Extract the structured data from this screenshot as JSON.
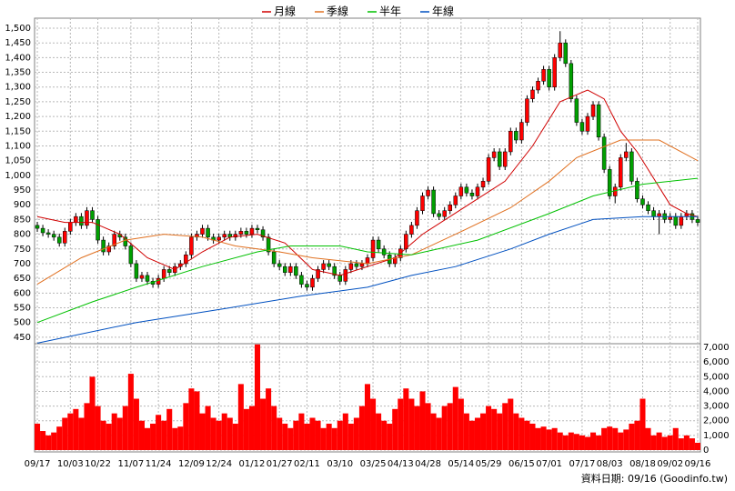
{
  "chart_data": {
    "type": "candlestick",
    "legend_position": "top",
    "grid": true,
    "footnote": "資料日期: 09/16 (Goodinfo.tw)",
    "up_color": "#ff0000",
    "down_color": "#00a000",
    "categories": [
      "09/17",
      null,
      null,
      null,
      null,
      null,
      "10/03",
      null,
      null,
      null,
      null,
      "10/22",
      null,
      null,
      null,
      null,
      null,
      "11/07",
      null,
      null,
      null,
      null,
      "11/24",
      null,
      null,
      null,
      null,
      null,
      "12/09",
      null,
      null,
      null,
      null,
      "12/24",
      null,
      null,
      null,
      null,
      null,
      "01/12",
      null,
      null,
      null,
      null,
      "01/27",
      null,
      null,
      null,
      null,
      "02/11",
      null,
      null,
      null,
      null,
      null,
      "03/10",
      null,
      null,
      null,
      null,
      null,
      "03/25",
      null,
      null,
      null,
      null,
      "04/13",
      null,
      null,
      null,
      null,
      "04/28",
      null,
      null,
      null,
      null,
      null,
      "05/14",
      null,
      null,
      null,
      null,
      "05/29",
      null,
      null,
      null,
      null,
      null,
      "06/15",
      null,
      null,
      null,
      null,
      "07/01",
      null,
      null,
      null,
      null,
      null,
      "07/17",
      null,
      null,
      null,
      null,
      "08/03",
      null,
      null,
      null,
      null,
      null,
      "08/18",
      null,
      null,
      null,
      null,
      "09/02",
      null,
      null,
      null,
      null,
      "09/16"
    ],
    "open": [
      830,
      820,
      805,
      800,
      790,
      770,
      810,
      840,
      860,
      830,
      880,
      850,
      780,
      740,
      760,
      800,
      790,
      760,
      700,
      650,
      660,
      640,
      630,
      650,
      680,
      670,
      690,
      700,
      730,
      790,
      800,
      820,
      790,
      780,
      790,
      800,
      790,
      800,
      810,
      800,
      820,
      815,
      790,
      740,
      700,
      690,
      670,
      690,
      660,
      630,
      620,
      650,
      680,
      700,
      690,
      660,
      640,
      680,
      700,
      690,
      700,
      720,
      780,
      750,
      730,
      700,
      720,
      750,
      800,
      830,
      880,
      930,
      950,
      870,
      860,
      880,
      900,
      930,
      960,
      940,
      930,
      960,
      980,
      1060,
      1080,
      1030,
      1080,
      1150,
      1120,
      1180,
      1260,
      1290,
      1320,
      1360,
      1300,
      1400,
      1450,
      1380,
      1260,
      1180,
      1150,
      1200,
      1240,
      1130,
      1020,
      930,
      960,
      1060,
      1080,
      980,
      920,
      900,
      880,
      860,
      870,
      850,
      860,
      830,
      860,
      870,
      850
    ],
    "high": [
      842,
      832,
      817,
      812,
      802,
      822,
      852,
      872,
      872,
      892,
      892,
      862,
      792,
      772,
      812,
      812,
      802,
      772,
      712,
      672,
      672,
      652,
      662,
      692,
      692,
      702,
      712,
      742,
      802,
      812,
      832,
      832,
      802,
      802,
      812,
      812,
      812,
      822,
      822,
      832,
      832,
      827,
      802,
      752,
      712,
      702,
      702,
      702,
      672,
      642,
      662,
      692,
      712,
      712,
      702,
      672,
      692,
      712,
      712,
      712,
      732,
      792,
      792,
      762,
      742,
      732,
      762,
      812,
      842,
      892,
      942,
      962,
      962,
      882,
      892,
      912,
      942,
      972,
      972,
      952,
      972,
      992,
      1072,
      1092,
      1092,
      1092,
      1162,
      1162,
      1192,
      1272,
      1302,
      1332,
      1372,
      1372,
      1412,
      1490,
      1462,
      1392,
      1272,
      1192,
      1212,
      1252,
      1252,
      1142,
      1032,
      972,
      1072,
      1110,
      1092,
      992,
      932,
      912,
      892,
      882,
      882,
      872,
      872,
      872,
      882,
      882,
      862
    ],
    "low": [
      808,
      793,
      788,
      778,
      758,
      758,
      798,
      828,
      818,
      818,
      838,
      768,
      728,
      728,
      748,
      778,
      748,
      688,
      638,
      638,
      628,
      618,
      618,
      638,
      658,
      658,
      678,
      688,
      718,
      778,
      788,
      778,
      768,
      768,
      778,
      778,
      778,
      788,
      788,
      788,
      803,
      778,
      728,
      688,
      678,
      658,
      658,
      648,
      618,
      608,
      608,
      638,
      668,
      678,
      648,
      628,
      628,
      668,
      678,
      678,
      688,
      708,
      738,
      718,
      688,
      688,
      708,
      738,
      788,
      818,
      868,
      918,
      858,
      848,
      848,
      868,
      888,
      918,
      928,
      918,
      918,
      948,
      968,
      1048,
      1018,
      1018,
      1068,
      1108,
      1108,
      1168,
      1248,
      1278,
      1308,
      1288,
      1288,
      1388,
      1368,
      1248,
      1168,
      1138,
      1138,
      1188,
      1118,
      1008,
      918,
      905,
      948,
      1048,
      968,
      908,
      888,
      868,
      848,
      800,
      838,
      838,
      818,
      818,
      848,
      838,
      828
    ],
    "close": [
      820,
      805,
      800,
      790,
      770,
      810,
      840,
      860,
      830,
      880,
      850,
      780,
      740,
      760,
      800,
      790,
      760,
      700,
      650,
      660,
      640,
      630,
      650,
      680,
      670,
      690,
      700,
      730,
      790,
      800,
      820,
      790,
      780,
      790,
      800,
      790,
      800,
      810,
      800,
      820,
      815,
      790,
      740,
      700,
      690,
      670,
      690,
      660,
      630,
      620,
      650,
      680,
      700,
      690,
      660,
      640,
      680,
      700,
      690,
      700,
      720,
      780,
      750,
      730,
      700,
      720,
      750,
      800,
      830,
      880,
      930,
      950,
      870,
      860,
      880,
      900,
      930,
      960,
      940,
      930,
      960,
      980,
      1060,
      1080,
      1030,
      1080,
      1150,
      1120,
      1180,
      1260,
      1290,
      1320,
      1360,
      1300,
      1400,
      1450,
      1380,
      1260,
      1180,
      1150,
      1200,
      1240,
      1130,
      1020,
      930,
      960,
      1060,
      1080,
      980,
      920,
      900,
      880,
      860,
      870,
      850,
      860,
      830,
      860,
      870,
      850,
      840
    ],
    "ylim": [
      428,
      1534
    ],
    "yticks": [
      450,
      500,
      550,
      600,
      650,
      700,
      750,
      800,
      850,
      900,
      950,
      {
        "value": 1000,
        "label": "1,000"
      },
      {
        "value": 1050,
        "label": "1,050"
      },
      {
        "value": 1100,
        "label": "1,100"
      },
      {
        "value": 1150,
        "label": "1,150"
      },
      {
        "value": 1200,
        "label": "1,200"
      },
      {
        "value": 1250,
        "label": "1,250"
      },
      {
        "value": 1300,
        "label": "1,300"
      },
      {
        "value": 1350,
        "label": "1,350"
      },
      {
        "value": 1400,
        "label": "1,400"
      },
      {
        "value": 1450,
        "label": "1,450"
      },
      {
        "value": 1500,
        "label": "1,500"
      }
    ],
    "series": [
      {
        "name": "月線",
        "color": "#d00000",
        "x": [
          0,
          5,
          10,
          15,
          20,
          25,
          30,
          35,
          40,
          45,
          50,
          55,
          60,
          65,
          70,
          75,
          80,
          85,
          90,
          95,
          100,
          103,
          106,
          109,
          112,
          115,
          118,
          120
        ],
        "values": [
          860,
          840,
          840,
          800,
          720,
          680,
          740,
          790,
          800,
          770,
          680,
          660,
          690,
          720,
          800,
          860,
          920,
          980,
          1100,
          1250,
          1290,
          1260,
          1150,
          1080,
          990,
          900,
          870,
          860
        ]
      },
      {
        "name": "季線",
        "color": "#e07020",
        "x": [
          0,
          8,
          16,
          23,
          30,
          36,
          44,
          50,
          60,
          68,
          76,
          86,
          93,
          98,
          106,
          113,
          120
        ],
        "values": [
          630,
          720,
          780,
          800,
          790,
          760,
          740,
          720,
          700,
          730,
          800,
          890,
          980,
          1060,
          1120,
          1120,
          1050
        ]
      },
      {
        "name": "半年",
        "color": "#00c000",
        "x": [
          0,
          10,
          18,
          30,
          40,
          46,
          55,
          60,
          68,
          80,
          93,
          101,
          110,
          120
        ],
        "values": [
          500,
          570,
          620,
          690,
          740,
          760,
          760,
          740,
          730,
          780,
          870,
          930,
          970,
          990
        ]
      },
      {
        "name": "年線",
        "color": "#0050c0",
        "x": [
          0,
          18,
          35,
          48,
          60,
          68,
          76,
          86,
          93,
          101,
          110,
          120
        ],
        "values": [
          430,
          500,
          550,
          590,
          620,
          660,
          690,
          750,
          800,
          850,
          860,
          860
        ]
      }
    ],
    "volume": {
      "color": "#ff0000",
      "ylim": [
        0,
        7250
      ],
      "yticks": [
        0,
        {
          "value": 1000,
          "label": "1,000"
        },
        {
          "value": 2000,
          "label": "2,000"
        },
        {
          "value": 3000,
          "label": "3,000"
        },
        {
          "value": 4000,
          "label": "4,000"
        },
        {
          "value": 5000,
          "label": "5,000"
        },
        {
          "value": 6000,
          "label": "6,000"
        },
        {
          "value": 7000,
          "label": "7,000"
        }
      ],
      "values": [
        1800,
        1300,
        1000,
        1200,
        1600,
        2200,
        2500,
        2800,
        2200,
        3200,
        5000,
        3000,
        2000,
        1800,
        2500,
        2200,
        3000,
        5200,
        3500,
        2000,
        1500,
        1800,
        2400,
        2000,
        2800,
        1500,
        1600,
        3200,
        4200,
        4000,
        2500,
        3000,
        2200,
        2000,
        2500,
        2200,
        1800,
        4500,
        2800,
        3000,
        7200,
        3500,
        4200,
        3000,
        2200,
        1800,
        1500,
        2000,
        2500,
        1800,
        2200,
        2000,
        1500,
        1800,
        1500,
        2000,
        2500,
        1800,
        2200,
        3000,
        4500,
        3500,
        2500,
        2000,
        1800,
        2800,
        3500,
        4200,
        3500,
        3000,
        4000,
        3200,
        2500,
        2200,
        3000,
        3200,
        4300,
        3500,
        2500,
        2000,
        2200,
        2500,
        3000,
        2800,
        2500,
        3200,
        3500,
        2500,
        2200,
        2000,
        1800,
        1500,
        1600,
        1400,
        1500,
        1200,
        1000,
        1200,
        1100,
        1000,
        900,
        1200,
        1000,
        1500,
        1600,
        1500,
        1200,
        1400,
        1800,
        2000,
        3500,
        1500,
        1000,
        1200,
        900,
        1000,
        1500,
        800,
        1000,
        800,
        500
      ]
    }
  }
}
